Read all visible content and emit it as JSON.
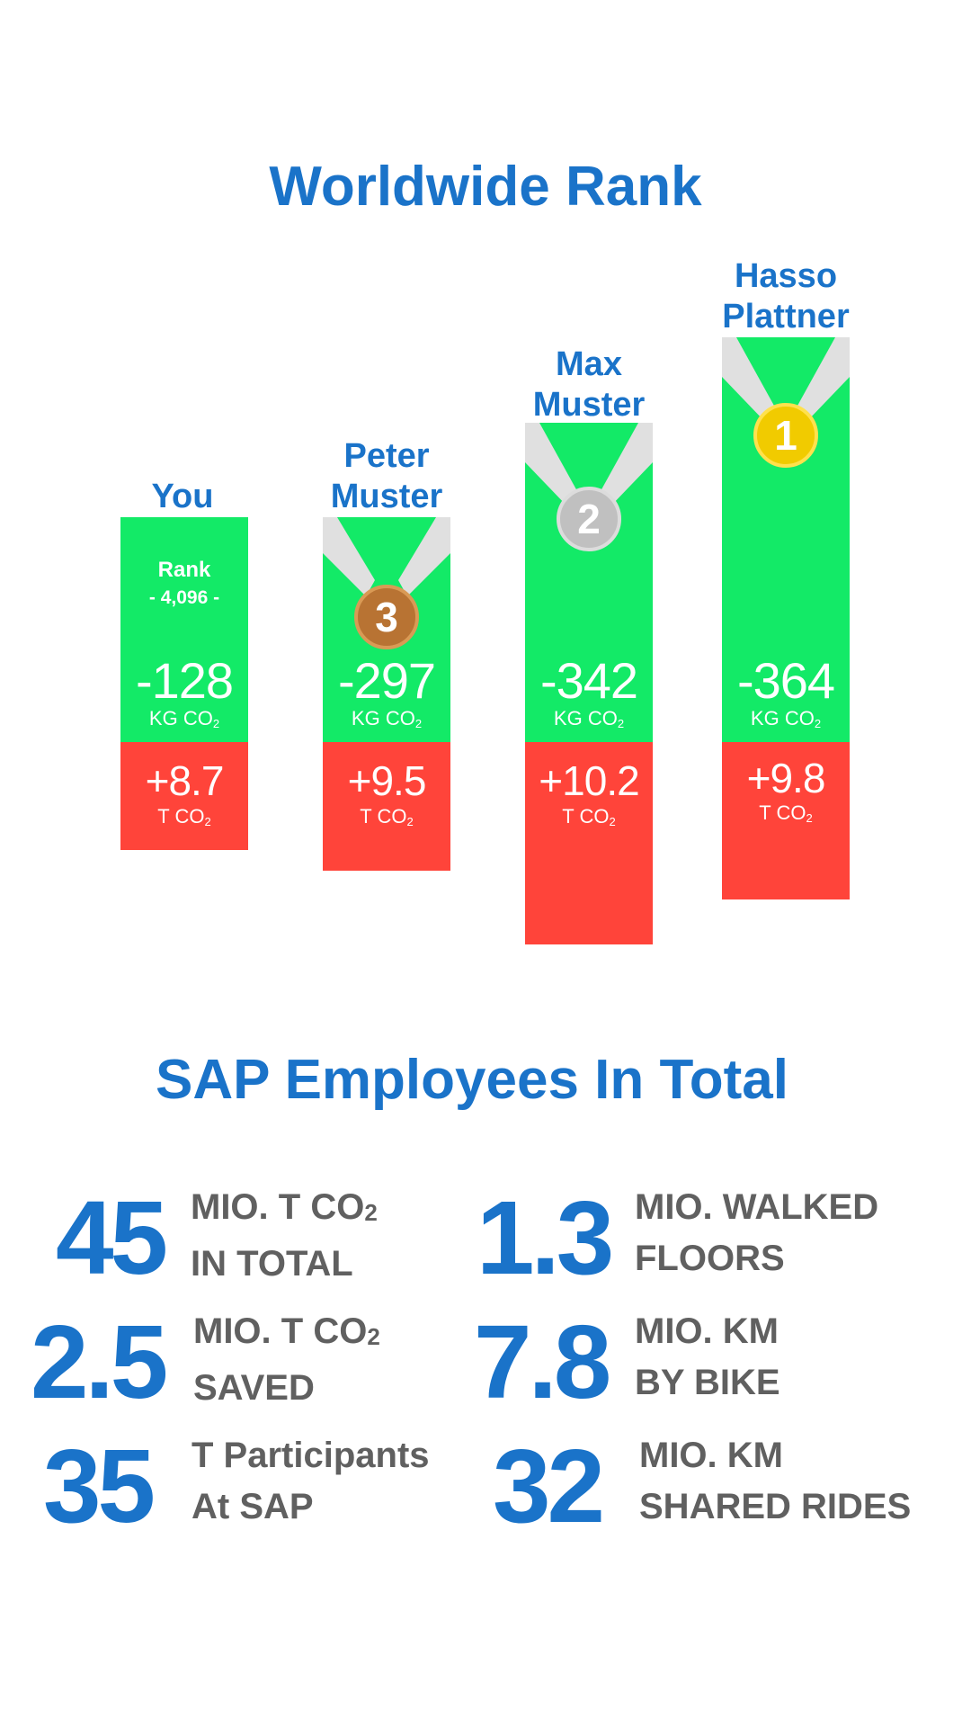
{
  "ranking": {
    "title": "Worldwide Rank",
    "entries": [
      {
        "name_line1": "You",
        "name_line2": "",
        "rank_label": "Rank",
        "rank_value": "- 4,096 -",
        "saved_value": "-128",
        "saved_unit": "KG CO",
        "saved_unit_sub": "2",
        "emitted_value": "+8.7",
        "emitted_unit": "T CO",
        "emitted_unit_sub": "2"
      },
      {
        "name_line1": "Peter",
        "name_line2": "Muster",
        "medal": "3",
        "medal_color": "#b87333",
        "saved_value": "-297",
        "saved_unit": "KG CO",
        "saved_unit_sub": "2",
        "emitted_value": "+9.5",
        "emitted_unit": "T CO",
        "emitted_unit_sub": "2"
      },
      {
        "name_line1": "Max",
        "name_line2": "Muster",
        "medal": "2",
        "medal_color": "#c0c0c0",
        "saved_value": "-342",
        "saved_unit": "KG CO",
        "saved_unit_sub": "2",
        "emitted_value": "+10.2",
        "emitted_unit": "T CO",
        "emitted_unit_sub": "2"
      },
      {
        "name_line1": "Hasso",
        "name_line2": "Plattner",
        "medal": "1",
        "medal_color": "#f1cb00",
        "saved_value": "-364",
        "saved_unit": "KG CO",
        "saved_unit_sub": "2",
        "emitted_value": "+9.8",
        "emitted_unit": "T CO",
        "emitted_unit_sub": "2"
      }
    ]
  },
  "totals": {
    "title": "SAP Employees In Total",
    "stats": [
      {
        "number": "45",
        "line1": "MIO. T CO",
        "line1_sub": "2",
        "line2": "IN TOTAL"
      },
      {
        "number": "1.3",
        "line1": "MIO. WALKED",
        "line2": "FLOORS"
      },
      {
        "number": "2.5",
        "line1": "MIO. T CO",
        "line1_sub": "2",
        "line2": "SAVED"
      },
      {
        "number": "7.8",
        "line1": "MIO. KM",
        "line2": "BY BIKE"
      },
      {
        "number": "35",
        "line1": "T Participants",
        "line2": "At SAP"
      },
      {
        "number": "32",
        "line1": "MIO. KM",
        "line2": "SHARED RIDES"
      }
    ]
  },
  "colors": {
    "accent": "#1a73c9",
    "positive": "#13ea67",
    "negative": "#ff443a",
    "ribbon": "#e0e0e0",
    "stat_text": "#606060"
  }
}
